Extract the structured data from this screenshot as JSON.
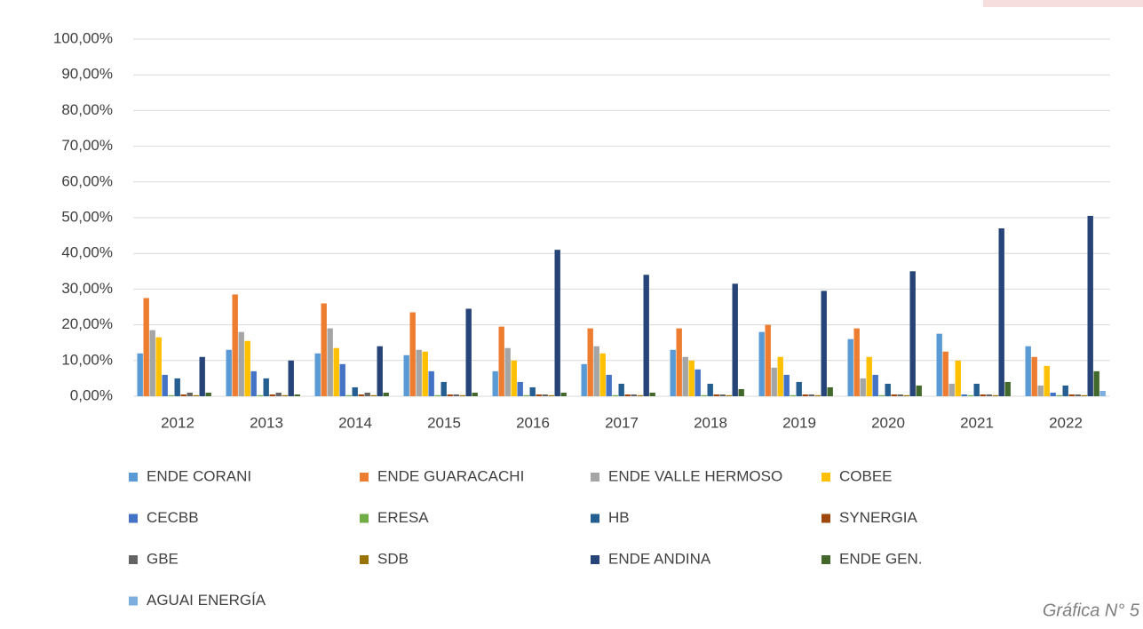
{
  "chart_data": {
    "type": "bar",
    "categories": [
      "2012",
      "2013",
      "2014",
      "2015",
      "2016",
      "2017",
      "2018",
      "2019",
      "2020",
      "2021",
      "2022"
    ],
    "series": [
      {
        "name": "ENDE CORANI",
        "color": "#5b9bd5",
        "values": [
          12,
          13,
          12,
          11.5,
          7,
          9,
          13,
          18,
          16,
          17.5,
          14
        ]
      },
      {
        "name": "ENDE GUARACACHI",
        "color": "#ed7d31",
        "values": [
          27.5,
          28.5,
          26,
          23.5,
          19.5,
          19,
          19,
          20,
          19,
          12.5,
          11
        ]
      },
      {
        "name": "ENDE VALLE HERMOSO",
        "color": "#a5a5a5",
        "values": [
          18.5,
          18,
          19,
          13,
          13.5,
          14,
          11,
          8,
          5,
          3.5,
          3
        ]
      },
      {
        "name": "COBEE",
        "color": "#ffc000",
        "values": [
          16.5,
          15.5,
          13.5,
          12.5,
          10,
          12,
          10,
          11,
          11,
          10,
          8.5
        ]
      },
      {
        "name": "CECBB",
        "color": "#4472c4",
        "values": [
          6,
          7,
          9,
          7,
          4,
          6,
          7.5,
          6,
          6,
          0.5,
          1
        ]
      },
      {
        "name": "ERESA",
        "color": "#70ad47",
        "values": [
          0.3,
          0.3,
          0.3,
          0.3,
          0.3,
          0.3,
          0.3,
          0.3,
          0.3,
          0.3,
          0.3
        ]
      },
      {
        "name": "HB",
        "color": "#255e91",
        "values": [
          5,
          5,
          2.5,
          4,
          2.5,
          3.5,
          3.5,
          4,
          3.5,
          3.5,
          3
        ]
      },
      {
        "name": "SYNERGIA",
        "color": "#9e480e",
        "values": [
          0.5,
          0.5,
          0.5,
          0.5,
          0.5,
          0.5,
          0.5,
          0.5,
          0.5,
          0.5,
          0.5
        ]
      },
      {
        "name": "GBE",
        "color": "#636363",
        "values": [
          1,
          1,
          1,
          0.5,
          0.5,
          0.5,
          0.5,
          0.5,
          0.5,
          0.5,
          0.5
        ]
      },
      {
        "name": "SDB",
        "color": "#997300",
        "values": [
          0.3,
          0.3,
          0.3,
          0.3,
          0.3,
          0.3,
          0.3,
          0.3,
          0.3,
          0.3,
          0.3
        ]
      },
      {
        "name": "ENDE ANDINA",
        "color": "#264478",
        "values": [
          11,
          10,
          14,
          24.5,
          41,
          34,
          31.5,
          29.5,
          35,
          47,
          50.5
        ]
      },
      {
        "name": "ENDE GEN.",
        "color": "#43682b",
        "values": [
          1,
          0.5,
          1,
          1,
          1,
          1,
          2,
          2.5,
          3,
          4,
          7
        ]
      },
      {
        "name": "AGUAI ENERGÍA",
        "color": "#7cafdd",
        "values": [
          0,
          0,
          0,
          0,
          0,
          0,
          0,
          0,
          0,
          0,
          1.5
        ]
      }
    ],
    "ylim": [
      0,
      100
    ],
    "yticks": [
      {
        "value": 0,
        "label": "0,00%"
      },
      {
        "value": 10,
        "label": "10,00%"
      },
      {
        "value": 20,
        "label": "20,00%"
      },
      {
        "value": 30,
        "label": "30,00%"
      },
      {
        "value": 40,
        "label": "40,00%"
      },
      {
        "value": 50,
        "label": "50,00%"
      },
      {
        "value": 60,
        "label": "60,00%"
      },
      {
        "value": 70,
        "label": "70,00%"
      },
      {
        "value": 80,
        "label": "80,00%"
      },
      {
        "value": 90,
        "label": "90,00%"
      },
      {
        "value": 100,
        "label": "100,00%"
      }
    ],
    "grid": true,
    "annotation": "Gráfica N° 5"
  }
}
